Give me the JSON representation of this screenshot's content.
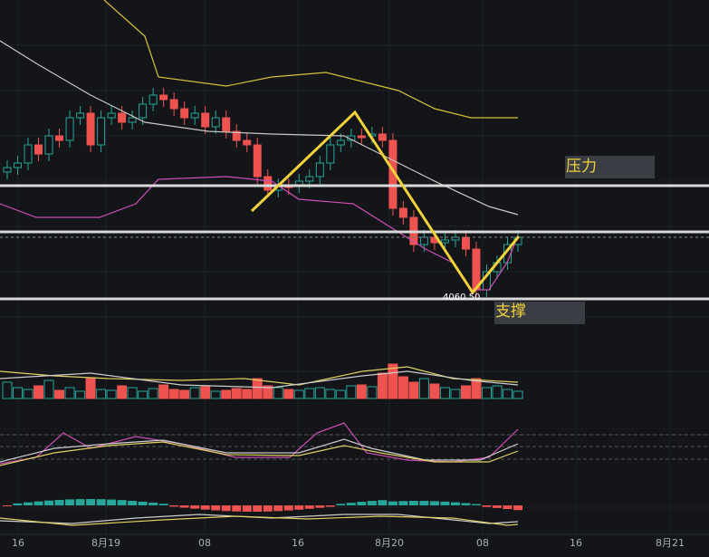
{
  "x_axis": {
    "labels": [
      "16",
      "8月19",
      "08",
      "16",
      "8月20",
      "08",
      "16",
      "8月21"
    ]
  },
  "annotations": {
    "resistance": "压力",
    "support": "支撑",
    "price_label": "4060.50"
  }
}
